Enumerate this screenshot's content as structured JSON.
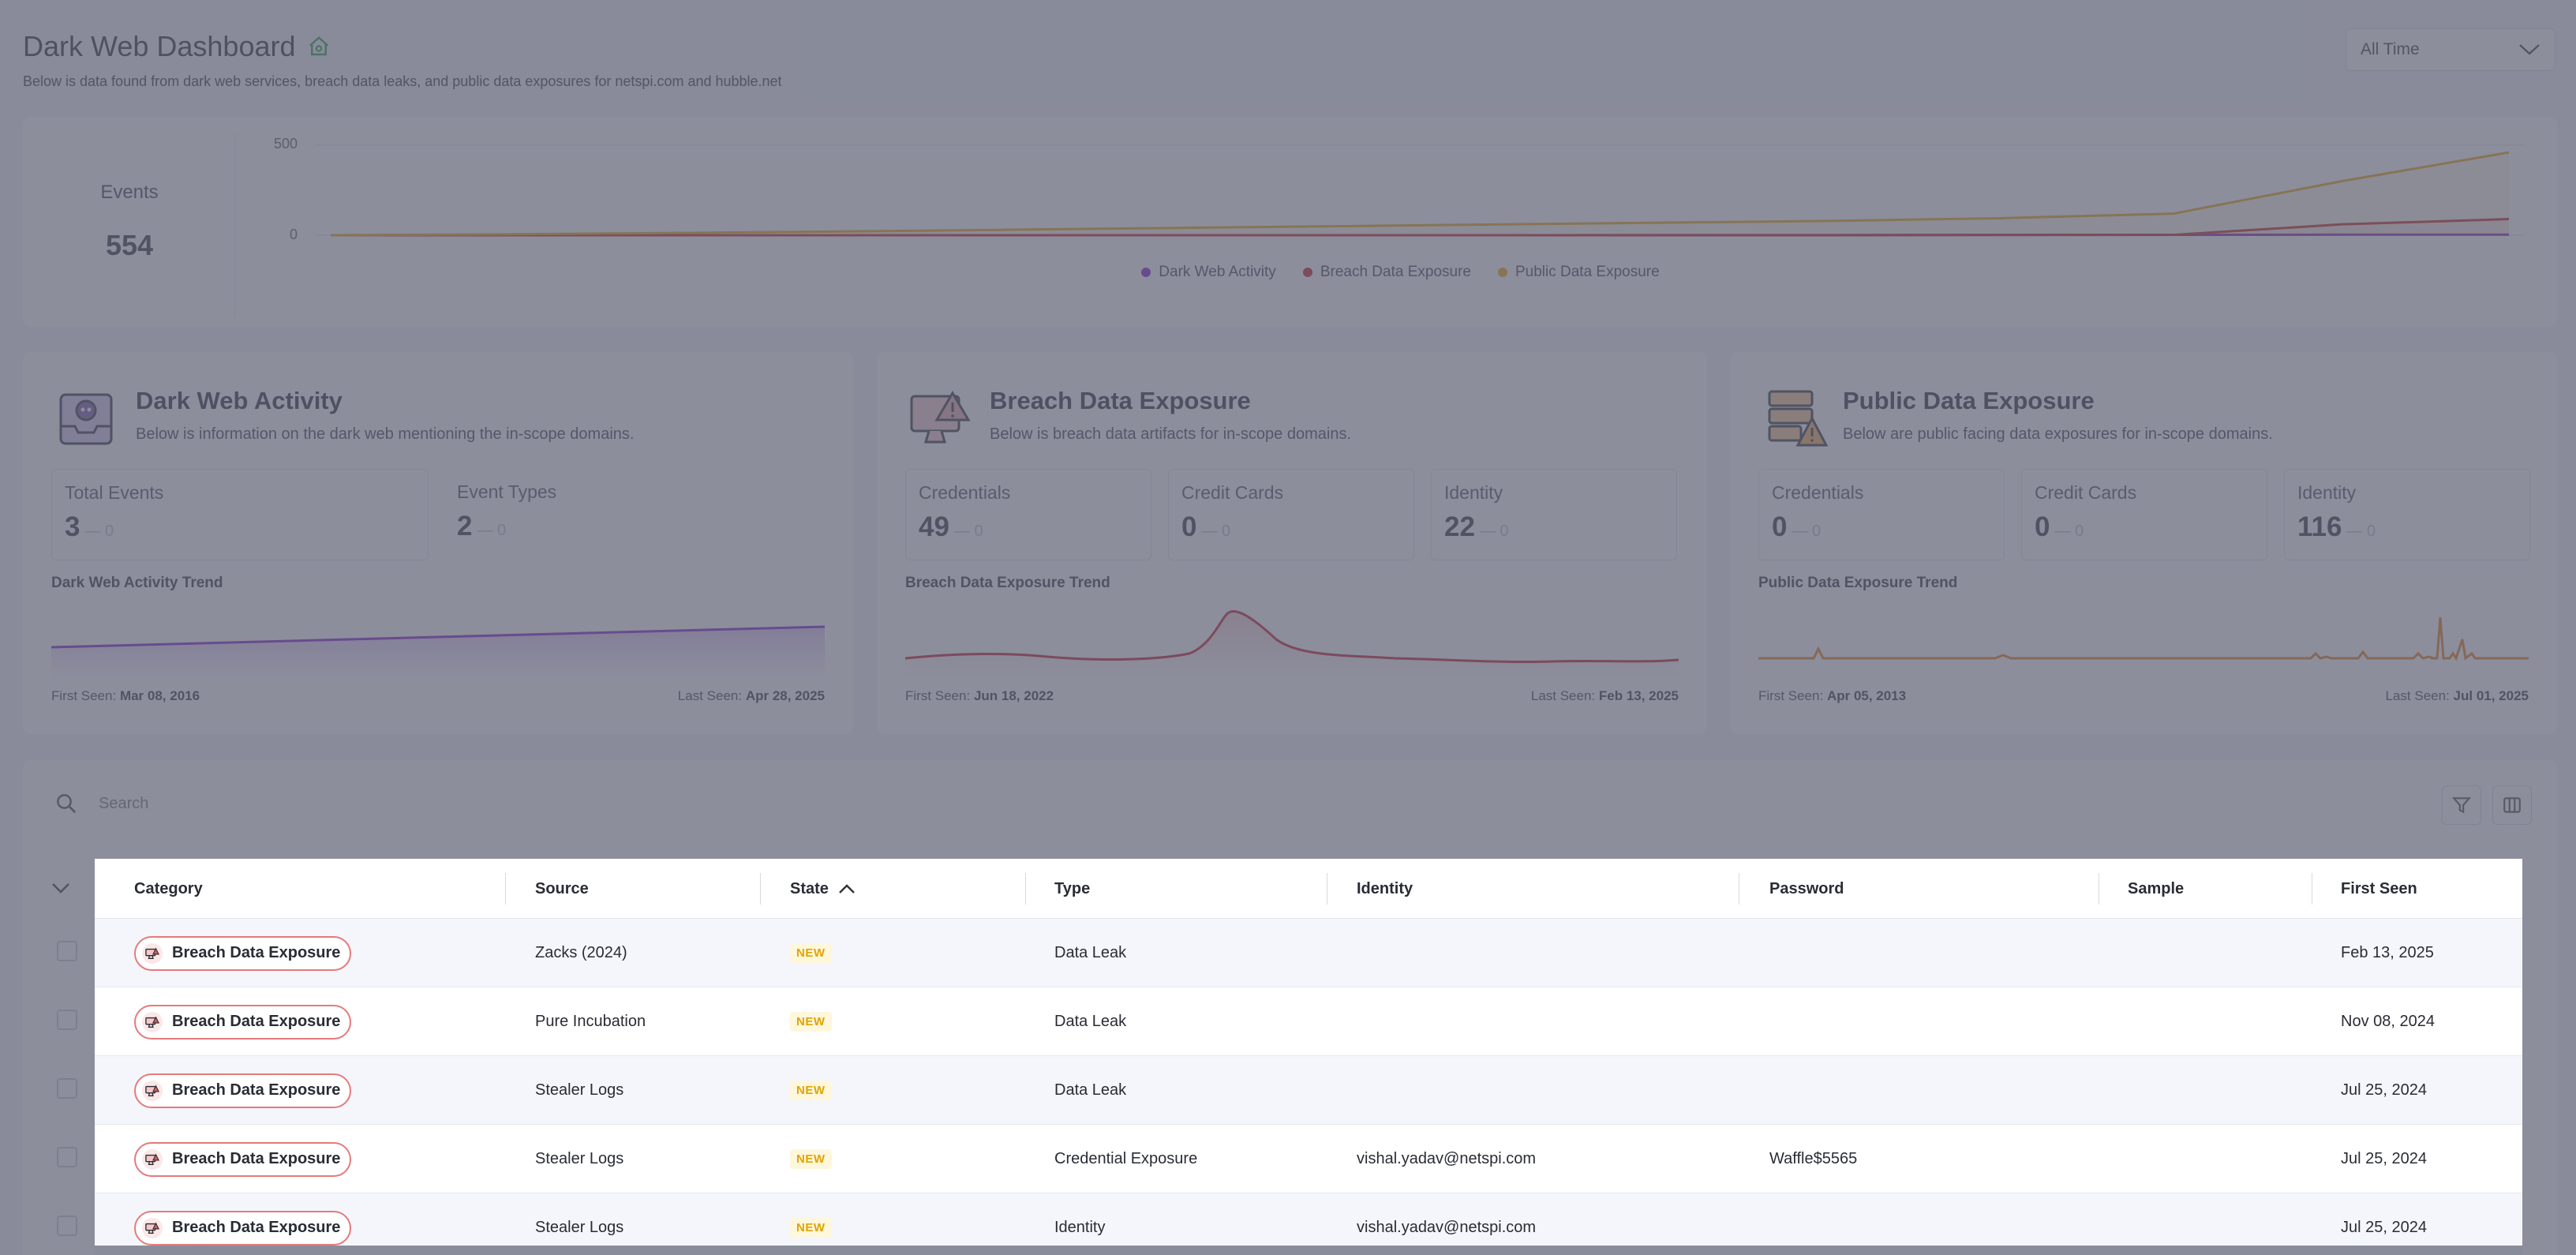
{
  "header": {
    "title": "Dark Web Dashboard",
    "subtitle": "Below is data found from dark web services, breach data leaks, and public data exposures for netspi.com and hubble.net",
    "time_filter": "All Time"
  },
  "events_card": {
    "label": "Events",
    "value": "554"
  },
  "chart_data": {
    "type": "area",
    "ytick_labels": [
      "500",
      "0"
    ],
    "ylim": [
      0,
      500
    ],
    "series": [
      {
        "name": "Dark Web Activity",
        "color": "#7b12c9",
        "values": [
          0,
          0,
          0,
          0,
          0,
          0,
          0,
          0,
          1,
          1,
          2,
          2,
          3,
          3
        ]
      },
      {
        "name": "Breach Data Exposure",
        "color": "#c4101a",
        "values": [
          0,
          0,
          0,
          0,
          0,
          0,
          0,
          0,
          0,
          0,
          1,
          2,
          60,
          90
        ]
      },
      {
        "name": "Public Data Exposure",
        "color": "#e8a100",
        "values": [
          0,
          5,
          12,
          20,
          30,
          40,
          50,
          60,
          70,
          80,
          95,
          120,
          300,
          460
        ]
      },
      {
        "name": "",
        "color": "#c4101a",
        "values": []
      }
    ],
    "legend": [
      "Dark Web Activity",
      "Breach Data Exposure",
      "Public Data Exposure"
    ],
    "legend_colors": [
      "#7b12c9",
      "#c4101a",
      "#e8a100"
    ],
    "grid": true,
    "legend_position": "bottom"
  },
  "modules": [
    {
      "title": "Dark Web Activity",
      "subtitle": "Below is information on the dark web mentioning the in-scope domains.",
      "icon": "skull-inbox-icon",
      "stats": [
        {
          "label": "Total Events",
          "value": "3",
          "delta": "— 0"
        },
        {
          "label": "Event Types",
          "value": "2",
          "delta": "— 0"
        }
      ],
      "trend_label": "Dark Web Activity Trend",
      "first_seen_label": "First Seen:",
      "first_seen": "Mar 08, 2016",
      "last_seen_label": "Last Seen:",
      "last_seen": "Apr 28, 2025",
      "color": "#7b12c9"
    },
    {
      "title": "Breach Data Exposure",
      "subtitle": "Below is breach data artifacts for in-scope domains.",
      "icon": "monitor-warning-icon",
      "stats": [
        {
          "label": "Credentials",
          "value": "49",
          "delta": "— 0"
        },
        {
          "label": "Credit Cards",
          "value": "0",
          "delta": "— 0"
        },
        {
          "label": "Identity",
          "value": "22",
          "delta": "— 0"
        }
      ],
      "trend_label": "Breach Data Exposure Trend",
      "first_seen_label": "First Seen:",
      "first_seen": "Jun 18, 2022",
      "last_seen_label": "Last Seen:",
      "last_seen": "Feb 13, 2025",
      "color": "#c4101a"
    },
    {
      "title": "Public Data Exposure",
      "subtitle": "Below are public facing data exposures for in-scope domains.",
      "icon": "server-warning-icon",
      "stats": [
        {
          "label": "Credentials",
          "value": "0",
          "delta": "— 0"
        },
        {
          "label": "Credit Cards",
          "value": "0",
          "delta": "— 0"
        },
        {
          "label": "Identity",
          "value": "116",
          "delta": "— 0"
        }
      ],
      "trend_label": "Public Data Exposure Trend",
      "first_seen_label": "First Seen:",
      "first_seen": "Apr 05, 2013",
      "last_seen_label": "Last Seen:",
      "last_seen": "Jul 01, 2025",
      "color": "#e8770c"
    }
  ],
  "search": {
    "placeholder": "Search"
  },
  "table": {
    "columns": [
      "Category",
      "Source",
      "State",
      "Type",
      "Identity",
      "Password",
      "Sample",
      "First Seen"
    ],
    "rows": [
      {
        "category": "Breach Data Exposure",
        "source": "Zacks (2024)",
        "state": "NEW",
        "type": "Data Leak",
        "identity": "",
        "password": "",
        "sample": "",
        "first_seen": "Feb 13, 2025"
      },
      {
        "category": "Breach Data Exposure",
        "source": "Pure Incubation",
        "state": "NEW",
        "type": "Data Leak",
        "identity": "",
        "password": "",
        "sample": "",
        "first_seen": "Nov 08, 2024"
      },
      {
        "category": "Breach Data Exposure",
        "source": "Stealer Logs",
        "state": "NEW",
        "type": "Data Leak",
        "identity": "",
        "password": "",
        "sample": "",
        "first_seen": "Jul 25, 2024"
      },
      {
        "category": "Breach Data Exposure",
        "source": "Stealer Logs",
        "state": "NEW",
        "type": "Credential Exposure",
        "identity": "vishal.yadav@netspi.com",
        "password": "Waffle$5565",
        "sample": "",
        "first_seen": "Jul 25, 2024"
      },
      {
        "category": "Breach Data Exposure",
        "source": "Stealer Logs",
        "state": "NEW",
        "type": "Identity",
        "identity": "vishal.yadav@netspi.com",
        "password": "",
        "sample": "",
        "first_seen": "Jul 25, 2024"
      }
    ]
  }
}
